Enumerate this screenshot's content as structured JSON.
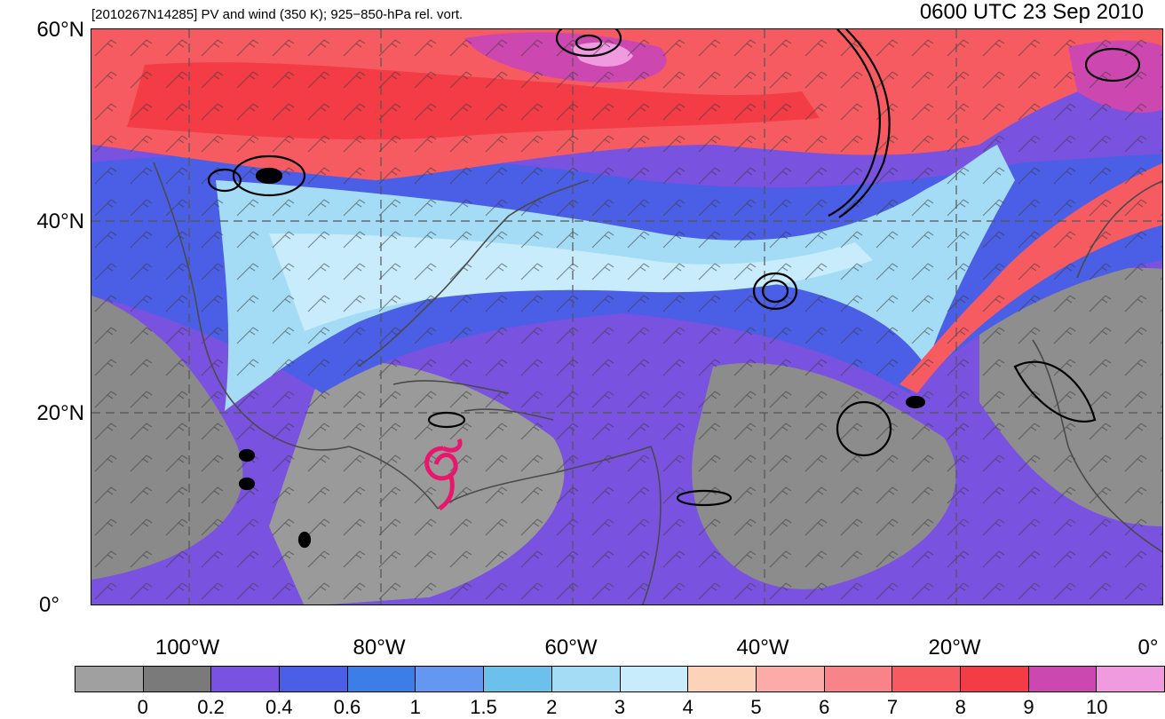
{
  "header": {
    "title_left": "[2010267N14285] PV and wind (350 K); 925−850-hPa rel. vort.",
    "title_right": "0600 UTC 23 Sep 2010"
  },
  "map": {
    "lat_labels": [
      "60°N",
      "40°N",
      "20°N",
      "0°"
    ],
    "lon_labels": [
      "100°W",
      "80°W",
      "60°W",
      "40°W",
      "20°W",
      "0°"
    ],
    "storm_symbol_color": "#e8166c",
    "contour_color": "#000000",
    "coastline_color": "#4a4a4a"
  },
  "colorbar": {
    "colors": [
      "#a0a0a0",
      "#7a7a7a",
      "#7a52e0",
      "#4a5ee6",
      "#3d7ee6",
      "#6498f0",
      "#6cc0ec",
      "#a4dcf6",
      "#c8ecfc",
      "#fcd2b8",
      "#fcaca8",
      "#f8848a",
      "#f65b62",
      "#f43c46",
      "#cc48b0",
      "#f09ae0"
    ],
    "tick_labels": [
      "0",
      "0.2",
      "0.4",
      "0.6",
      "1",
      "1.5",
      "2",
      "3",
      "4",
      "5",
      "6",
      "7",
      "8",
      "9",
      "10"
    ]
  }
}
